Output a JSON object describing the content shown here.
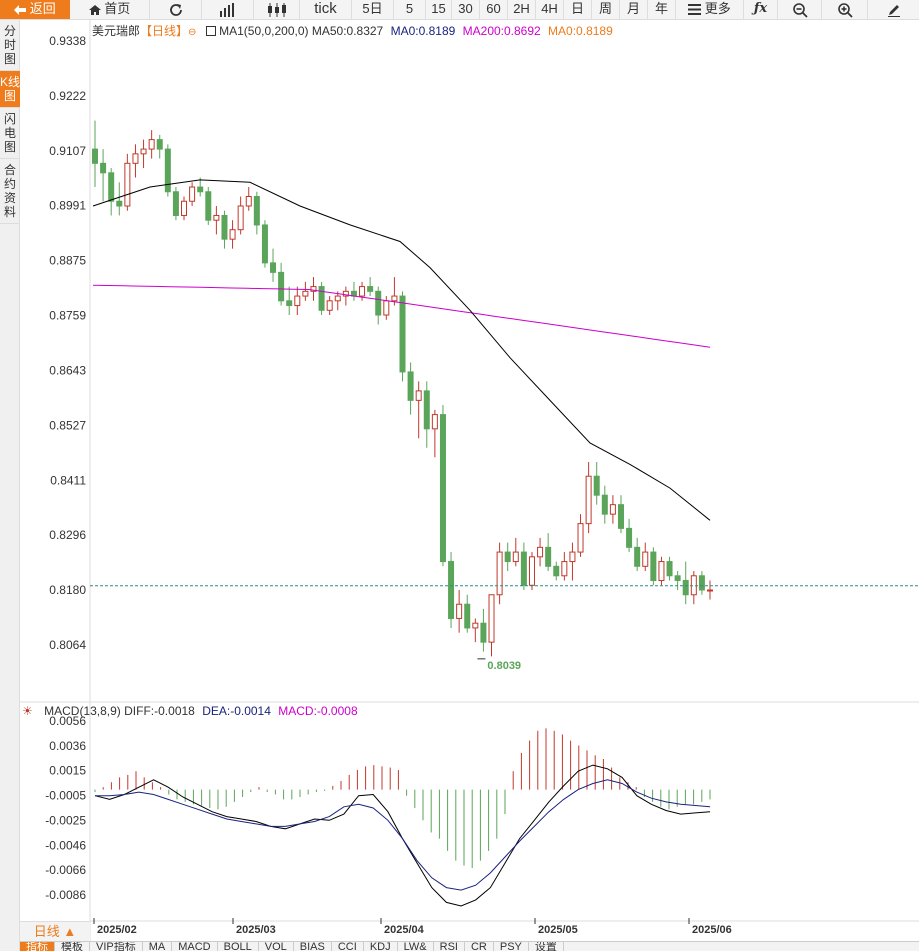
{
  "toolbar": {
    "back": "返回",
    "home": "首页",
    "tick": "tick",
    "d5": "5日",
    "m5": "5",
    "m15": "15",
    "m30": "30",
    "m60": "60",
    "h2": "2H",
    "h4": "4H",
    "day": "日",
    "week": "周",
    "month": "月",
    "year": "年",
    "more": "更多"
  },
  "sidebar": [
    "分时图",
    "K线图",
    "闪电图",
    "合约资料"
  ],
  "header": {
    "symbol": "美元瑞郎",
    "period": "【日线】",
    "ma1": "MA1(50,0,200,0)",
    "ma50": "MA50:0.8327",
    "ma0a": "MA0:0.8189",
    "ma200": "MA200:0.8692",
    "ma0b": "MA0:0.8189"
  },
  "macd_header": {
    "name": "MACD(13,8,9)",
    "diff": "DIFF:-0.0018",
    "dea": "DEA:-0.0014",
    "macd": "MACD:-0.0008"
  },
  "price_axis": [
    "0.9338",
    "0.9222",
    "0.9107",
    "0.8991",
    "0.8875",
    "0.8759",
    "0.8643",
    "0.8527",
    "0.8411",
    "0.8296",
    "0.8180",
    "0.8064"
  ],
  "macd_axis": [
    "0.0056",
    "0.0036",
    "0.0015",
    "-0.0005",
    "-0.0025",
    "-0.0046",
    "-0.0066",
    "-0.0086"
  ],
  "low_label": "0.8039",
  "period_button": "日线 ▲",
  "dates": [
    "2025/02",
    "2025/03",
    "2025/04",
    "2025/05",
    "2025/06"
  ],
  "bottom_tabs": [
    "指标",
    "模板",
    "VIP指标",
    "MA",
    "MACD",
    "BOLL",
    "VOL",
    "BIAS",
    "CCI",
    "KDJ",
    "LW&",
    "RSI",
    "CR",
    "PSY",
    "设置"
  ],
  "colors": {
    "up": "#c0392b",
    "down": "#5aa55a",
    "ma50": "#000000",
    "ma200": "#cc00cc",
    "accent": "#ee7b1c",
    "dea": "#1a237e"
  },
  "chart_data": {
    "type": "candlestick",
    "price_range": [
      0.8039,
      0.9338
    ],
    "ma50_end": 0.8327,
    "ma200_end": 0.8692,
    "last": 0.8189,
    "candles": [
      [
        0.911,
        0.917,
        0.903,
        0.908
      ],
      [
        0.908,
        0.911,
        0.9,
        0.906
      ],
      [
        0.906,
        0.907,
        0.897,
        0.9
      ],
      [
        0.9,
        0.904,
        0.897,
        0.899
      ],
      [
        0.899,
        0.91,
        0.898,
        0.908
      ],
      [
        0.908,
        0.912,
        0.905,
        0.91
      ],
      [
        0.91,
        0.913,
        0.907,
        0.911
      ],
      [
        0.911,
        0.915,
        0.909,
        0.913
      ],
      [
        0.913,
        0.914,
        0.909,
        0.911
      ],
      [
        0.911,
        0.912,
        0.901,
        0.902
      ],
      [
        0.902,
        0.903,
        0.896,
        0.897
      ],
      [
        0.897,
        0.901,
        0.896,
        0.9
      ],
      [
        0.9,
        0.904,
        0.899,
        0.903
      ],
      [
        0.903,
        0.905,
        0.901,
        0.902
      ],
      [
        0.902,
        0.903,
        0.895,
        0.896
      ],
      [
        0.896,
        0.899,
        0.893,
        0.897
      ],
      [
        0.897,
        0.898,
        0.89,
        0.892
      ],
      [
        0.892,
        0.896,
        0.89,
        0.894
      ],
      [
        0.894,
        0.901,
        0.893,
        0.899
      ],
      [
        0.899,
        0.903,
        0.898,
        0.901
      ],
      [
        0.901,
        0.902,
        0.893,
        0.895
      ],
      [
        0.895,
        0.896,
        0.886,
        0.887
      ],
      [
        0.887,
        0.89,
        0.883,
        0.885
      ],
      [
        0.885,
        0.887,
        0.878,
        0.879
      ],
      [
        0.879,
        0.882,
        0.876,
        0.878
      ],
      [
        0.878,
        0.882,
        0.876,
        0.88
      ],
      [
        0.88,
        0.883,
        0.879,
        0.881
      ],
      [
        0.881,
        0.884,
        0.879,
        0.882
      ],
      [
        0.882,
        0.883,
        0.876,
        0.877
      ],
      [
        0.877,
        0.88,
        0.876,
        0.879
      ],
      [
        0.879,
        0.881,
        0.877,
        0.88
      ],
      [
        0.88,
        0.882,
        0.878,
        0.881
      ],
      [
        0.881,
        0.883,
        0.879,
        0.88
      ],
      [
        0.88,
        0.883,
        0.879,
        0.882
      ],
      [
        0.882,
        0.884,
        0.88,
        0.881
      ],
      [
        0.881,
        0.882,
        0.874,
        0.876
      ],
      [
        0.876,
        0.88,
        0.875,
        0.879
      ],
      [
        0.879,
        0.884,
        0.878,
        0.88
      ],
      [
        0.88,
        0.881,
        0.862,
        0.864
      ],
      [
        0.864,
        0.866,
        0.855,
        0.858
      ],
      [
        0.858,
        0.862,
        0.85,
        0.86
      ],
      [
        0.86,
        0.862,
        0.848,
        0.852
      ],
      [
        0.852,
        0.856,
        0.846,
        0.855
      ],
      [
        0.855,
        0.857,
        0.823,
        0.824
      ],
      [
        0.824,
        0.826,
        0.81,
        0.812
      ],
      [
        0.812,
        0.818,
        0.809,
        0.815
      ],
      [
        0.815,
        0.817,
        0.809,
        0.81
      ],
      [
        0.81,
        0.812,
        0.807,
        0.811
      ],
      [
        0.811,
        0.814,
        0.805,
        0.807
      ],
      [
        0.807,
        0.817,
        0.804,
        0.817
      ],
      [
        0.817,
        0.828,
        0.815,
        0.826
      ],
      [
        0.826,
        0.828,
        0.822,
        0.824
      ],
      [
        0.824,
        0.829,
        0.823,
        0.826
      ],
      [
        0.826,
        0.828,
        0.818,
        0.819
      ],
      [
        0.819,
        0.826,
        0.818,
        0.825
      ],
      [
        0.825,
        0.829,
        0.823,
        0.827
      ],
      [
        0.827,
        0.83,
        0.822,
        0.823
      ],
      [
        0.823,
        0.824,
        0.82,
        0.821
      ],
      [
        0.821,
        0.826,
        0.82,
        0.824
      ],
      [
        0.824,
        0.828,
        0.82,
        0.826
      ],
      [
        0.826,
        0.834,
        0.825,
        0.832
      ],
      [
        0.832,
        0.845,
        0.83,
        0.842
      ],
      [
        0.842,
        0.845,
        0.836,
        0.838
      ],
      [
        0.838,
        0.84,
        0.832,
        0.834
      ],
      [
        0.834,
        0.838,
        0.832,
        0.836
      ],
      [
        0.836,
        0.838,
        0.83,
        0.831
      ],
      [
        0.831,
        0.833,
        0.826,
        0.827
      ],
      [
        0.827,
        0.829,
        0.822,
        0.823
      ],
      [
        0.823,
        0.828,
        0.822,
        0.826
      ],
      [
        0.826,
        0.827,
        0.819,
        0.82
      ],
      [
        0.82,
        0.825,
        0.819,
        0.824
      ],
      [
        0.824,
        0.825,
        0.82,
        0.821
      ],
      [
        0.821,
        0.822,
        0.818,
        0.82
      ],
      [
        0.82,
        0.824,
        0.815,
        0.817
      ],
      [
        0.817,
        0.822,
        0.815,
        0.821
      ],
      [
        0.821,
        0.822,
        0.817,
        0.818
      ],
      [
        0.818,
        0.82,
        0.816,
        0.818
      ]
    ],
    "macd_range": [
      -0.0086,
      0.0056
    ],
    "macd_hist": [
      -0.0002,
      0.0002,
      0.0006,
      0.001,
      0.0012,
      0.0015,
      0.001,
      0.0006,
      0.0002,
      -0.0004,
      -0.0008,
      -0.001,
      -0.0012,
      -0.0013,
      -0.0015,
      -0.0016,
      -0.0014,
      -0.001,
      -0.0006,
      -0.0002,
      0.0002,
      -0.0002,
      -0.0004,
      -0.0008,
      -0.0008,
      -0.0006,
      -0.0004,
      -0.0002,
      -0.0001,
      0.0003,
      0.0007,
      0.0012,
      0.0016,
      0.0019,
      0.002,
      0.0019,
      0.0018,
      0.0016,
      -0.0005,
      -0.0015,
      -0.0025,
      -0.0035,
      -0.004,
      -0.005,
      -0.0058,
      -0.0062,
      -0.0064,
      -0.0058,
      -0.005,
      -0.004,
      -0.002,
      0.0015,
      0.003,
      0.004,
      0.0048,
      0.005,
      0.0048,
      0.0045,
      0.004,
      0.0036,
      0.0032,
      0.0028,
      0.0025,
      0.0018,
      0.001,
      0.0006,
      0.0002,
      -0.0006,
      -0.001,
      -0.0014,
      -0.0016,
      -0.0014,
      -0.0012,
      -0.0012,
      -0.001,
      -0.0008
    ],
    "diff": [
      -0.0005,
      -0.0008,
      -0.0004,
      0.0002,
      0.0008,
      0.0002,
      -0.0006,
      -0.0012,
      -0.0018,
      -0.0022,
      -0.0024,
      -0.0026,
      -0.003,
      -0.0032,
      -0.0028,
      -0.0024,
      -0.0025,
      -0.002,
      -0.0005,
      -0.0004,
      -0.0018,
      -0.004,
      -0.006,
      -0.008,
      -0.0092,
      -0.0095,
      -0.009,
      -0.008,
      -0.006,
      -0.004,
      -0.0025,
      -0.001,
      0.0003,
      0.0015,
      0.002,
      0.0017,
      0.001,
      -0.0005,
      -0.0012,
      -0.0017,
      -0.002,
      -0.0019,
      -0.0018
    ],
    "dea": [
      -0.0005,
      -0.0005,
      -0.0004,
      -0.0002,
      -0.0004,
      -0.0008,
      -0.0012,
      -0.0016,
      -0.002,
      -0.0024,
      -0.0026,
      -0.0028,
      -0.003,
      -0.003,
      -0.0028,
      -0.0026,
      -0.0022,
      -0.0014,
      -0.0012,
      -0.0015,
      -0.0025,
      -0.004,
      -0.0058,
      -0.0072,
      -0.008,
      -0.0082,
      -0.0078,
      -0.0068,
      -0.0055,
      -0.0042,
      -0.003,
      -0.0018,
      -0.0008,
      0.0,
      0.0005,
      0.0008,
      0.0005,
      -0.0002,
      -0.0007,
      -0.001,
      -0.0012,
      -0.0013,
      -0.0014
    ]
  }
}
